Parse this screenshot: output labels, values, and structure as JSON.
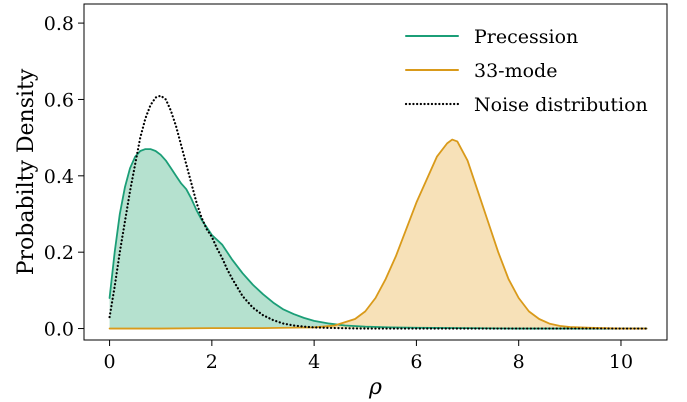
{
  "chart_data": {
    "type": "area",
    "xlabel": "ρ",
    "ylabel": "Probabilty Density",
    "xlim": [
      -0.5,
      10.9
    ],
    "ylim": [
      -0.03,
      0.85
    ],
    "xticks": [
      0,
      2,
      4,
      6,
      8,
      10
    ],
    "xtick_labels": [
      "0",
      "2",
      "4",
      "6",
      "8",
      "10"
    ],
    "yticks": [
      0.0,
      0.2,
      0.4,
      0.6,
      0.8
    ],
    "ytick_labels": [
      "0.0",
      "0.2",
      "0.4",
      "0.6",
      "0.8"
    ],
    "grid": false,
    "legend_position": "top-right",
    "series": [
      {
        "name": "Precession",
        "color": "#1b9e77",
        "fill": "#a8dcc7",
        "style": "solid",
        "filled": true,
        "x": [
          0.0,
          0.1,
          0.2,
          0.3,
          0.4,
          0.5,
          0.6,
          0.7,
          0.8,
          0.9,
          1.0,
          1.1,
          1.2,
          1.3,
          1.4,
          1.5,
          1.6,
          1.7,
          1.8,
          1.9,
          2.0,
          2.2,
          2.4,
          2.6,
          2.8,
          3.0,
          3.2,
          3.4,
          3.6,
          3.8,
          4.0,
          4.3,
          4.6,
          5.0,
          5.5,
          6.0,
          7.0,
          8.0,
          9.0,
          10.0,
          10.5
        ],
        "y": [
          0.08,
          0.2,
          0.3,
          0.37,
          0.42,
          0.45,
          0.465,
          0.47,
          0.47,
          0.465,
          0.455,
          0.44,
          0.42,
          0.4,
          0.38,
          0.365,
          0.34,
          0.31,
          0.285,
          0.265,
          0.245,
          0.22,
          0.18,
          0.145,
          0.115,
          0.09,
          0.068,
          0.05,
          0.038,
          0.028,
          0.02,
          0.013,
          0.008,
          0.005,
          0.003,
          0.002,
          0.001,
          0.0,
          0.0,
          0.0,
          0.0
        ]
      },
      {
        "name": "33-mode",
        "color": "#d99a1a",
        "fill": "#f6dcab",
        "style": "solid",
        "filled": true,
        "x": [
          0.0,
          1.0,
          2.0,
          3.0,
          4.0,
          4.4,
          4.8,
          5.0,
          5.2,
          5.4,
          5.6,
          5.8,
          6.0,
          6.2,
          6.4,
          6.6,
          6.7,
          6.8,
          7.0,
          7.2,
          7.4,
          7.6,
          7.8,
          8.0,
          8.2,
          8.4,
          8.6,
          8.8,
          9.0,
          9.4,
          10.0,
          10.5
        ],
        "y": [
          0.0,
          0.0,
          0.001,
          0.001,
          0.003,
          0.008,
          0.025,
          0.045,
          0.08,
          0.13,
          0.19,
          0.26,
          0.33,
          0.39,
          0.45,
          0.485,
          0.495,
          0.49,
          0.44,
          0.36,
          0.28,
          0.2,
          0.13,
          0.08,
          0.045,
          0.025,
          0.013,
          0.007,
          0.004,
          0.002,
          0.0,
          0.0
        ]
      },
      {
        "name": "Noise distribution",
        "color": "#000000",
        "style": "dotted",
        "filled": false,
        "x": [
          0.0,
          0.1,
          0.2,
          0.3,
          0.4,
          0.5,
          0.6,
          0.7,
          0.8,
          0.9,
          1.0,
          1.1,
          1.2,
          1.3,
          1.4,
          1.5,
          1.6,
          1.7,
          1.8,
          1.9,
          2.0,
          2.1,
          2.2,
          2.3,
          2.4,
          2.6,
          2.8,
          3.0,
          3.2,
          3.4,
          3.6,
          3.8,
          4.0,
          4.2,
          4.5,
          5.0,
          6.0,
          8.0,
          10.0,
          10.5
        ],
        "y": [
          0.03,
          0.11,
          0.2,
          0.28,
          0.36,
          0.43,
          0.5,
          0.55,
          0.585,
          0.605,
          0.61,
          0.6,
          0.57,
          0.53,
          0.48,
          0.43,
          0.38,
          0.33,
          0.29,
          0.26,
          0.24,
          0.21,
          0.185,
          0.155,
          0.13,
          0.085,
          0.055,
          0.035,
          0.022,
          0.013,
          0.008,
          0.005,
          0.003,
          0.002,
          0.001,
          0.0,
          0.0,
          0.0,
          0.0,
          0.0
        ]
      }
    ]
  }
}
